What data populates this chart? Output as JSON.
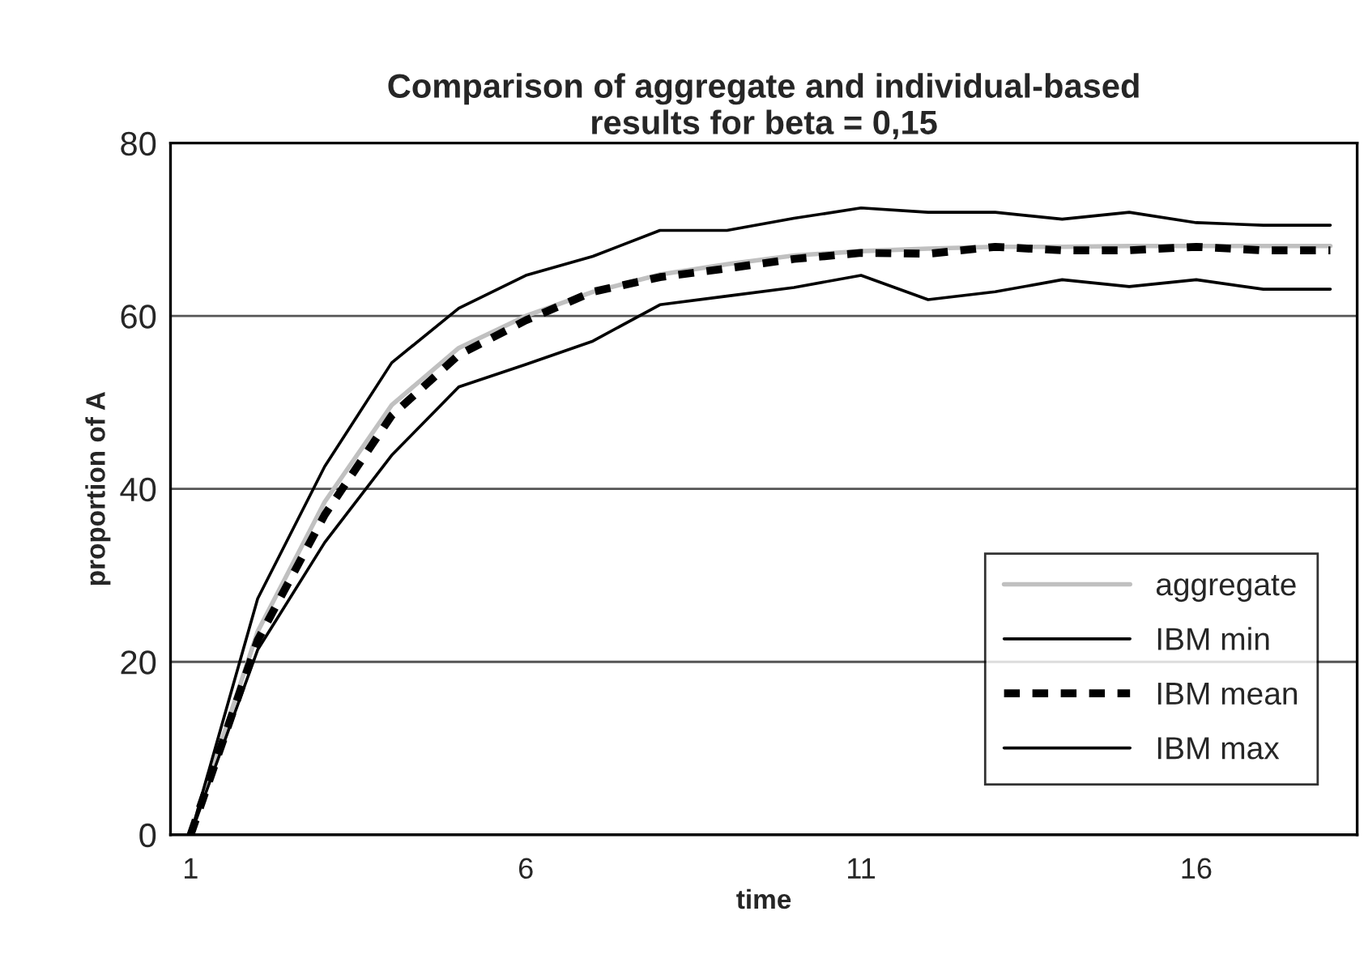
{
  "chart_data": {
    "type": "line",
    "title": "Comparison of aggregate and individual-based\nresults for beta = 0,15",
    "xlabel": "time",
    "ylabel": "proportion of A",
    "x": [
      1,
      2,
      3,
      4,
      5,
      6,
      7,
      8,
      9,
      10,
      11,
      12,
      13,
      14,
      15,
      16,
      17,
      18
    ],
    "xlim": [
      0.7,
      18.4
    ],
    "xticks": [
      1,
      6,
      11,
      16
    ],
    "ylim": [
      0,
      80
    ],
    "yticks": [
      0,
      20,
      40,
      60,
      80
    ],
    "grid": "y",
    "legend": "bottom right",
    "marker": "none",
    "series": [
      {
        "name": "aggregate",
        "color": "#c0c0c0",
        "line_style": "solid",
        "values": [
          0,
          23.5,
          38.5,
          49.7,
          56.3,
          60,
          62.8,
          64.8,
          66,
          67,
          67.5,
          67.8,
          68,
          68,
          68.1,
          68.1,
          68.1,
          68.1
        ]
      },
      {
        "name": "IBM min",
        "color": "#000000",
        "line_style": "solid",
        "values": [
          0,
          21.4,
          33.8,
          43.9,
          51.8,
          54.4,
          57.1,
          61.3,
          62.3,
          63.3,
          64.7,
          61.9,
          62.8,
          64.2,
          63.4,
          64.2,
          63.1,
          63.1
        ]
      },
      {
        "name": "IBM mean",
        "color": "#000000",
        "line_style": "dashed",
        "values": [
          0,
          22.5,
          37,
          48.5,
          55.5,
          59.5,
          62.8,
          64.5,
          65.5,
          66.6,
          67.3,
          67.2,
          68,
          67.6,
          67.6,
          68,
          67.6,
          67.6
        ]
      },
      {
        "name": "IBM max",
        "color": "#000000",
        "line_style": "solid",
        "values": [
          0,
          27.3,
          42.6,
          54.6,
          60.9,
          64.7,
          66.9,
          69.9,
          69.9,
          71.3,
          72.5,
          72,
          72,
          71.2,
          72,
          70.8,
          70.5,
          70.5
        ]
      }
    ]
  }
}
